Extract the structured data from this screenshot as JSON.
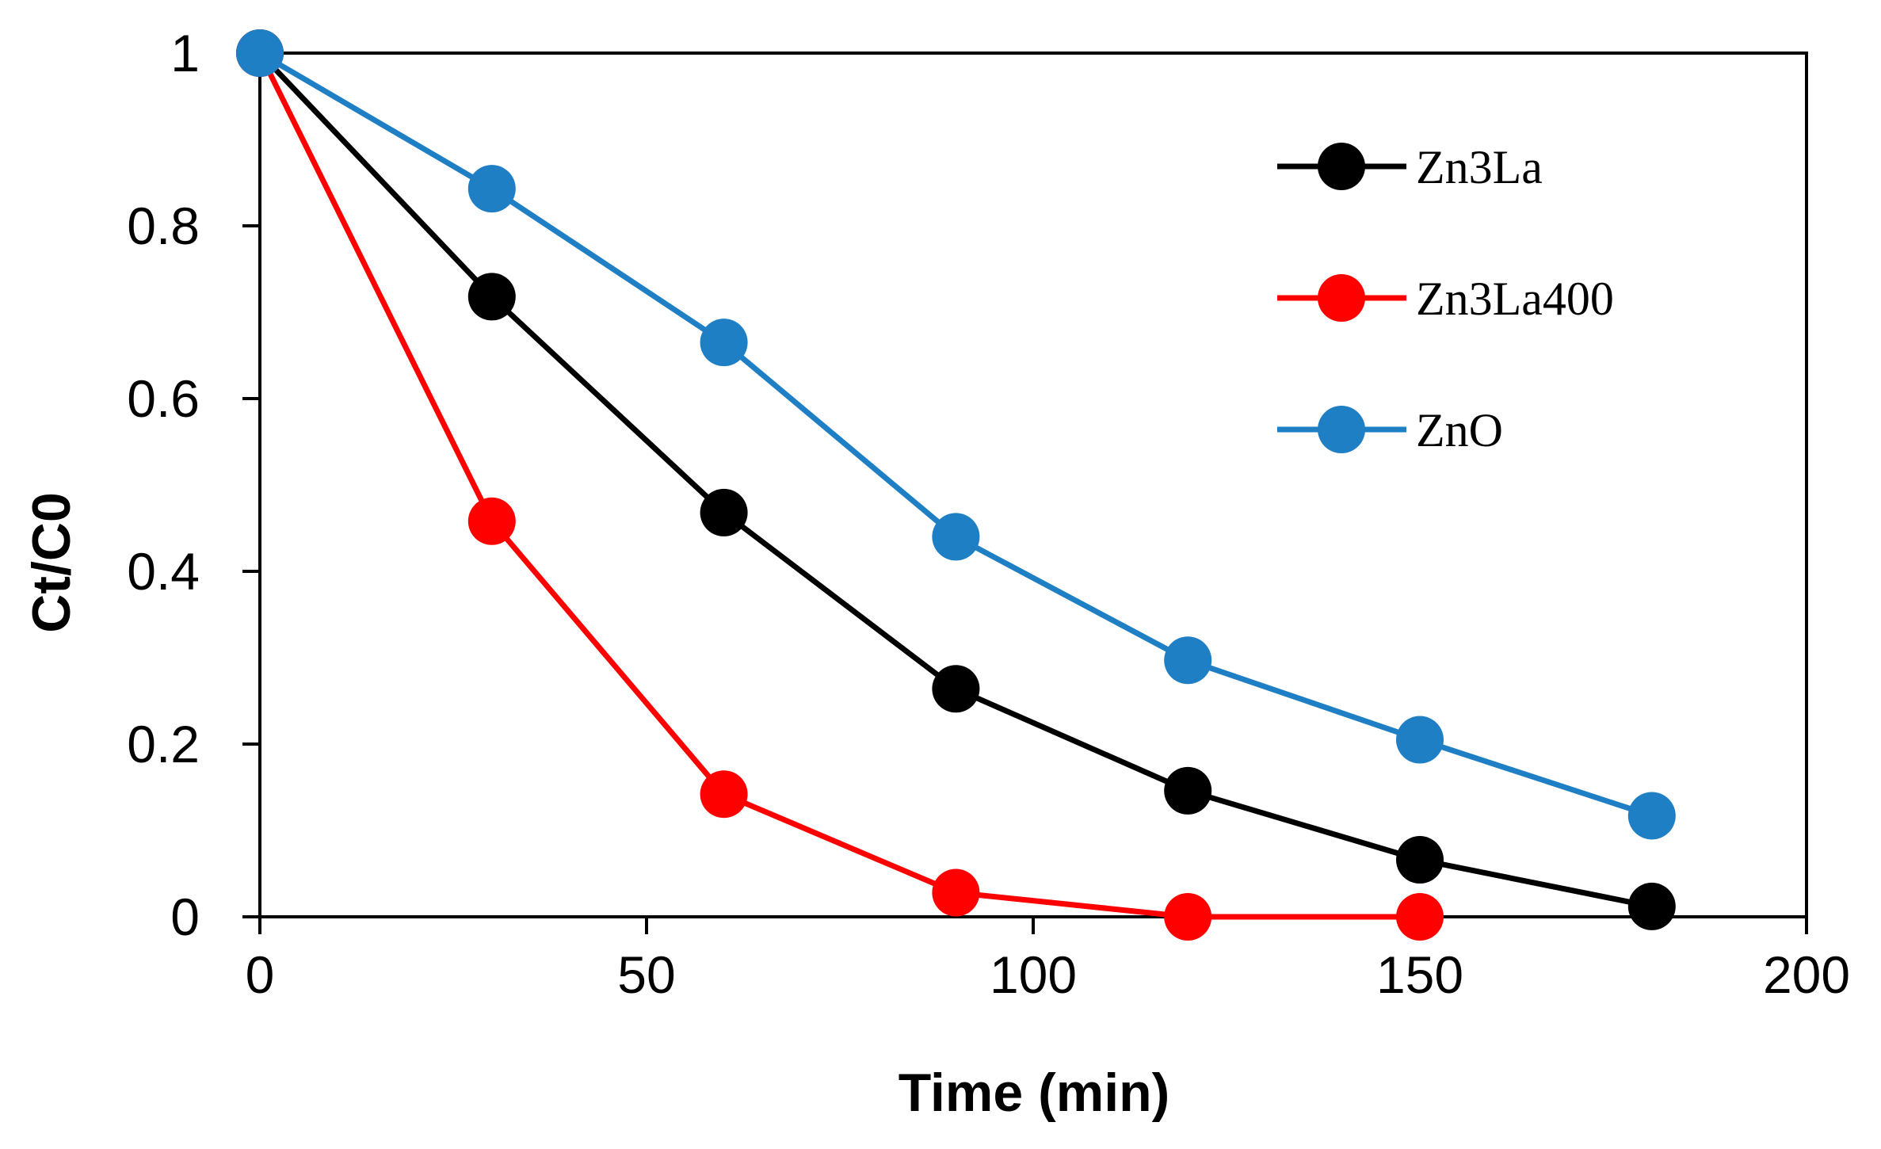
{
  "chart_data": {
    "type": "line",
    "title": "",
    "xlabel": "Time (min)",
    "ylabel": "Ct/C0",
    "xlim": [
      0,
      200
    ],
    "ylim": [
      0,
      1
    ],
    "xticks": [
      0,
      50,
      100,
      150,
      200
    ],
    "yticks": [
      0,
      0.2,
      0.4,
      0.6,
      0.8,
      1
    ],
    "xtick_labels": [
      "0",
      "50",
      "100",
      "150",
      "200"
    ],
    "ytick_labels": [
      "0",
      "0.2",
      "0.4",
      "0.6",
      "0.8",
      "1"
    ],
    "grid": false,
    "legend_position": "top-right",
    "series": [
      {
        "name": "Zn3La",
        "color": "#000000",
        "x": [
          0,
          30,
          60,
          90,
          120,
          150,
          180
        ],
        "y": [
          1.0,
          0.718,
          0.468,
          0.264,
          0.146,
          0.066,
          0.012
        ]
      },
      {
        "name": "Zn3La400",
        "color": "#ff0000",
        "x": [
          0,
          30,
          60,
          90,
          120,
          150
        ],
        "y": [
          1.0,
          0.458,
          0.142,
          0.028,
          0.0,
          0.0
        ]
      },
      {
        "name": "ZnO",
        "color": "#1f7fc4",
        "x": [
          0,
          30,
          60,
          90,
          120,
          150,
          180
        ],
        "y": [
          1.0,
          0.843,
          0.665,
          0.44,
          0.297,
          0.205,
          0.117
        ]
      }
    ]
  }
}
